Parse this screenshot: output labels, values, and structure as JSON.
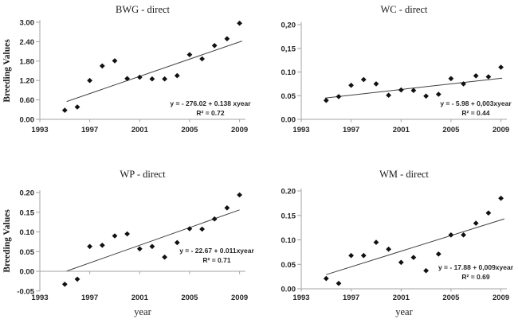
{
  "figure": {
    "ylabel": "Breeding Values",
    "xlabel": "year",
    "colors": {
      "marker": "#111111",
      "axis": "#a3a3a3",
      "trend": "#404040",
      "text": "#1a1a1a"
    }
  },
  "chart_data": [
    {
      "id": "bwg-direct",
      "type": "scatter",
      "title": "BWG - direct",
      "x": [
        1995,
        1996,
        1997,
        1998,
        1999,
        2000,
        2001,
        2002,
        2003,
        2004,
        2005,
        2006,
        2007,
        2008,
        2009
      ],
      "y": [
        0.28,
        0.38,
        1.2,
        1.65,
        1.81,
        1.26,
        1.3,
        1.25,
        1.25,
        1.35,
        2.0,
        1.87,
        2.28,
        2.49,
        2.97
      ],
      "xlim": [
        1993,
        2009.6
      ],
      "ylim": [
        0,
        3.0
      ],
      "xticks": {
        "values": [
          1993,
          1997,
          2001,
          2005,
          2009
        ],
        "labels": [
          "1993",
          "1997",
          "2001",
          "2005",
          "2009"
        ]
      },
      "yticks": {
        "values": [
          0,
          0.6,
          1.2,
          1.8,
          2.4,
          3.0
        ],
        "labels": [
          "0.00",
          "0.60",
          "1.20",
          "1.80",
          "2.40",
          "3.00"
        ]
      },
      "trend": {
        "x1": 1995.15,
        "y1": 0.55,
        "x2": 2009.2,
        "y2": 2.42
      },
      "equation": "y = - 276.02 + 0.138 xyear",
      "r2": "R² = 0.72",
      "grid": false,
      "legend": false
    },
    {
      "id": "wc-direct",
      "type": "scatter",
      "title": "WC - direct",
      "x": [
        1995,
        1996,
        1997,
        1998,
        1999,
        2000,
        2001,
        2002,
        2003,
        2004,
        2005,
        2006,
        2007,
        2008,
        2009
      ],
      "y": [
        0.04,
        0.048,
        0.072,
        0.084,
        0.075,
        0.051,
        0.062,
        0.061,
        0.049,
        0.053,
        0.086,
        0.075,
        0.092,
        0.09,
        0.11
      ],
      "xlim": [
        1993,
        2009.6
      ],
      "ylim": [
        0,
        0.2
      ],
      "xticks": {
        "values": [
          1993,
          1997,
          2001,
          2005,
          2009
        ],
        "labels": [
          "1993",
          "1997",
          "2001",
          "2005",
          "2009"
        ]
      },
      "yticks": {
        "values": [
          0,
          0.05,
          0.1,
          0.15,
          0.2
        ],
        "labels": [
          "0.00",
          "0.05",
          "0.10",
          "0,15",
          "0,20"
        ]
      },
      "trend": {
        "x1": 1994.9,
        "y1": 0.045,
        "x2": 2009.1,
        "y2": 0.087
      },
      "equation": "y = - 5.98 + 0,003xyear",
      "r2": "R² = 0.44",
      "grid": false,
      "legend": false
    },
    {
      "id": "wp-direct",
      "type": "scatter",
      "title": "WP - direct",
      "x": [
        1995,
        1996,
        1997,
        1998,
        1999,
        2000,
        2001,
        2002,
        2003,
        2004,
        2005,
        2006,
        2007,
        2008,
        2009
      ],
      "y": [
        -0.033,
        -0.02,
        0.063,
        0.066,
        0.09,
        0.095,
        0.057,
        0.063,
        0.036,
        0.073,
        0.108,
        0.107,
        0.133,
        0.161,
        0.194
      ],
      "xlim": [
        1993,
        2009.6
      ],
      "ylim": [
        -0.05,
        0.2
      ],
      "xticks": {
        "values": [
          1993,
          1997,
          2001,
          2005,
          2009
        ],
        "labels": [
          "1993",
          "1997",
          "2001",
          "2005",
          "2009"
        ]
      },
      "yticks": {
        "values": [
          -0.05,
          0,
          0.05,
          0.1,
          0.15,
          0.2
        ],
        "labels": [
          "-0.05",
          "0.00",
          "0.05",
          "0.10",
          "0.15",
          "0.20"
        ]
      },
      "trend": {
        "x1": 1995.1,
        "y1": 0.0,
        "x2": 2009.0,
        "y2": 0.156
      },
      "equation": "y = - 22.67 + 0.011xyear",
      "r2": "R² = 0.71",
      "grid": false,
      "legend": false
    },
    {
      "id": "wm-direct",
      "type": "scatter",
      "title": "WM - direct",
      "x": [
        1995,
        1996,
        1997,
        1998,
        1999,
        2000,
        2001,
        2002,
        2003,
        2004,
        2005,
        2006,
        2007,
        2008,
        2009
      ],
      "y": [
        0.021,
        0.011,
        0.068,
        0.068,
        0.095,
        0.081,
        0.054,
        0.064,
        0.037,
        0.071,
        0.11,
        0.11,
        0.134,
        0.155,
        0.185
      ],
      "xlim": [
        1993,
        2009.6
      ],
      "ylim": [
        0,
        0.2
      ],
      "xticks": {
        "values": [
          1993,
          1997,
          2001,
          2005,
          2009
        ],
        "labels": [
          "1993",
          "1997",
          "2001",
          "2005",
          "2009"
        ]
      },
      "yticks": {
        "values": [
          0,
          0.05,
          0.1,
          0.15,
          0.2
        ],
        "labels": [
          "0.00",
          "0.05",
          "0.10",
          "0.15",
          "0.20"
        ]
      },
      "trend": {
        "x1": 1995.0,
        "y1": 0.029,
        "x2": 2009.28,
        "y2": 0.143
      },
      "equation": "y = - 17.88 + 0,009xyear",
      "r2": "R² = 0.69",
      "grid": false,
      "legend": false
    }
  ]
}
